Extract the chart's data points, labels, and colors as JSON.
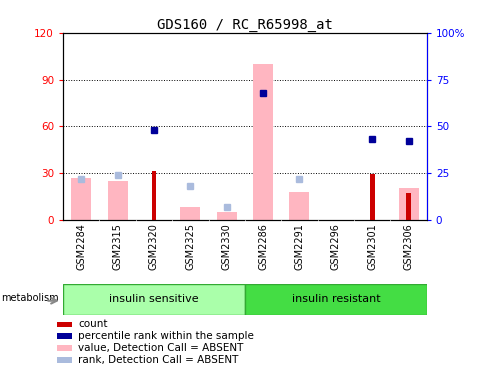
{
  "title": "GDS160 / RC_R65998_at",
  "samples": [
    "GSM2284",
    "GSM2315",
    "GSM2320",
    "GSM2325",
    "GSM2330",
    "GSM2286",
    "GSM2291",
    "GSM2296",
    "GSM2301",
    "GSM2306"
  ],
  "count": [
    0,
    0,
    31,
    0,
    0,
    0,
    0,
    0,
    29,
    17
  ],
  "percentile_rank": [
    null,
    null,
    48,
    null,
    null,
    68,
    null,
    null,
    43,
    42
  ],
  "value_absent": [
    27,
    25,
    null,
    8,
    5,
    100,
    18,
    null,
    null,
    20
  ],
  "rank_absent": [
    22,
    24,
    null,
    18,
    7,
    null,
    22,
    null,
    null,
    null
  ],
  "left_ylim": [
    0,
    120
  ],
  "right_ylim": [
    0,
    100
  ],
  "left_yticks": [
    0,
    30,
    60,
    90,
    120
  ],
  "right_yticks": [
    0,
    25,
    50,
    75,
    100
  ],
  "right_yticklabels": [
    "0",
    "25",
    "50",
    "75",
    "100%"
  ],
  "bg_color": "#ffffff",
  "count_color": "#CC0000",
  "pct_rank_color": "#000099",
  "value_absent_color": "#FFB6C1",
  "rank_absent_color": "#AABBDD",
  "tick_bg_color": "#C8C8C8",
  "group1_color": "#AAFFAA",
  "group2_color": "#44DD44",
  "legend_items": [
    {
      "label": "count",
      "color": "#CC0000",
      "type": "rect"
    },
    {
      "label": "percentile rank within the sample",
      "color": "#000099",
      "type": "rect"
    },
    {
      "label": "value, Detection Call = ABSENT",
      "color": "#FFB6C1",
      "type": "rect"
    },
    {
      "label": "rank, Detection Call = ABSENT",
      "color": "#AABBDD",
      "type": "rect"
    }
  ]
}
